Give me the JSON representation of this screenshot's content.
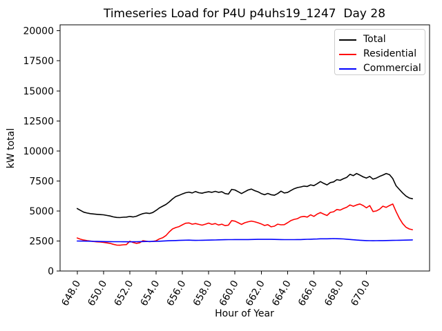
{
  "figure": {
    "title": "Timeseries Load for P4U p4uhs19_1247  Day 28",
    "xlabel": "Hour of Year",
    "ylabel": "kW total"
  },
  "chart_data": {
    "type": "line",
    "title": "Timeseries Load for P4U p4uhs19_1247  Day 28",
    "xlabel": "Hour of Year",
    "ylabel": "kW total",
    "xlim": [
      646.7,
      674.8
    ],
    "ylim": [
      0,
      20500
    ],
    "grid": false,
    "legend_position": "upper right",
    "xtick_rotation": 60,
    "xticks": [
      648,
      650,
      652,
      654,
      656,
      658,
      660,
      662,
      664,
      666,
      668,
      670
    ],
    "xtick_labels": [
      "648.0",
      "650.0",
      "652.0",
      "654.0",
      "656.0",
      "658.0",
      "660.0",
      "662.0",
      "664.0",
      "666.0",
      "668.0",
      "670.0"
    ],
    "yticks": [
      0,
      2500,
      5000,
      7500,
      10000,
      12500,
      15000,
      17500,
      20000
    ],
    "ytick_labels": [
      "0",
      "2500",
      "5000",
      "7500",
      "10000",
      "12500",
      "15000",
      "17500",
      "20000"
    ],
    "x": [
      648.0,
      648.25,
      648.5,
      648.75,
      649.0,
      649.25,
      649.5,
      649.75,
      650.0,
      650.25,
      650.5,
      650.75,
      651.0,
      651.25,
      651.5,
      651.75,
      652.0,
      652.25,
      652.5,
      652.75,
      653.0,
      653.25,
      653.5,
      653.75,
      654.0,
      654.25,
      654.5,
      654.75,
      655.0,
      655.25,
      655.5,
      655.75,
      656.0,
      656.25,
      656.5,
      656.75,
      657.0,
      657.25,
      657.5,
      657.75,
      658.0,
      658.25,
      658.5,
      658.75,
      659.0,
      659.25,
      659.5,
      659.75,
      660.0,
      660.25,
      660.5,
      660.75,
      661.0,
      661.25,
      661.5,
      661.75,
      662.0,
      662.25,
      662.5,
      662.75,
      663.0,
      663.25,
      663.5,
      663.75,
      664.0,
      664.25,
      664.5,
      664.75,
      665.0,
      665.25,
      665.5,
      665.75,
      666.0,
      666.25,
      666.5,
      666.75,
      667.0,
      667.25,
      667.5,
      667.75,
      668.0,
      668.25,
      668.5,
      668.75,
      669.0,
      669.25,
      669.5,
      669.75,
      670.0,
      670.25,
      670.5,
      670.75,
      671.0,
      671.25,
      671.5,
      671.75,
      672.0,
      672.25,
      672.5,
      672.75,
      673.0,
      673.25,
      673.5
    ],
    "series": [
      {
        "name": "Total",
        "color": "#000000",
        "values": [
          5200,
          5050,
          4900,
          4830,
          4780,
          4750,
          4720,
          4700,
          4680,
          4630,
          4580,
          4510,
          4460,
          4450,
          4480,
          4490,
          4540,
          4500,
          4560,
          4680,
          4780,
          4830,
          4790,
          4870,
          5050,
          5250,
          5400,
          5540,
          5750,
          6000,
          6200,
          6300,
          6420,
          6520,
          6570,
          6500,
          6620,
          6520,
          6480,
          6550,
          6600,
          6550,
          6630,
          6550,
          6600,
          6450,
          6400,
          6800,
          6750,
          6600,
          6450,
          6600,
          6750,
          6820,
          6690,
          6600,
          6450,
          6350,
          6460,
          6350,
          6310,
          6450,
          6650,
          6500,
          6540,
          6700,
          6850,
          6950,
          7000,
          7070,
          7040,
          7170,
          7110,
          7270,
          7450,
          7300,
          7170,
          7360,
          7420,
          7610,
          7550,
          7690,
          7800,
          8050,
          7940,
          8120,
          7990,
          7840,
          7740,
          7880,
          7650,
          7740,
          7880,
          7990,
          8120,
          8030,
          7700,
          7100,
          6800,
          6500,
          6250,
          6080,
          6020
        ]
      },
      {
        "name": "Residential",
        "color": "#ff0000",
        "values": [
          2750,
          2650,
          2580,
          2530,
          2490,
          2460,
          2430,
          2410,
          2390,
          2340,
          2300,
          2220,
          2160,
          2150,
          2180,
          2200,
          2480,
          2380,
          2300,
          2350,
          2520,
          2480,
          2440,
          2470,
          2520,
          2670,
          2770,
          2950,
          3250,
          3500,
          3620,
          3700,
          3850,
          3980,
          4000,
          3900,
          3950,
          3880,
          3820,
          3900,
          3990,
          3880,
          3950,
          3830,
          3900,
          3780,
          3820,
          4200,
          4150,
          4020,
          3880,
          4020,
          4100,
          4160,
          4100,
          4020,
          3920,
          3790,
          3860,
          3680,
          3730,
          3900,
          3850,
          3860,
          4020,
          4200,
          4300,
          4360,
          4500,
          4550,
          4490,
          4680,
          4550,
          4740,
          4870,
          4740,
          4620,
          4880,
          4930,
          5120,
          5070,
          5200,
          5310,
          5500,
          5390,
          5500,
          5580,
          5450,
          5260,
          5450,
          4950,
          5000,
          5150,
          5400,
          5300,
          5450,
          5580,
          4950,
          4400,
          3950,
          3650,
          3500,
          3440
        ]
      },
      {
        "name": "Commercial",
        "color": "#0000ff",
        "values": [
          2500,
          2495,
          2490,
          2485,
          2480,
          2472,
          2465,
          2458,
          2450,
          2448,
          2445,
          2443,
          2440,
          2438,
          2435,
          2433,
          2430,
          2435,
          2440,
          2445,
          2450,
          2455,
          2460,
          2465,
          2470,
          2483,
          2495,
          2508,
          2520,
          2530,
          2540,
          2550,
          2560,
          2565,
          2570,
          2560,
          2550,
          2555,
          2560,
          2565,
          2570,
          2578,
          2585,
          2593,
          2600,
          2605,
          2610,
          2615,
          2620,
          2620,
          2620,
          2620,
          2620,
          2625,
          2630,
          2635,
          2640,
          2638,
          2635,
          2633,
          2630,
          2625,
          2620,
          2615,
          2610,
          2613,
          2615,
          2618,
          2620,
          2630,
          2640,
          2650,
          2660,
          2665,
          2680,
          2680,
          2680,
          2690,
          2700,
          2690,
          2680,
          2673,
          2650,
          2625,
          2600,
          2580,
          2560,
          2545,
          2530,
          2525,
          2520,
          2525,
          2530,
          2535,
          2540,
          2545,
          2550,
          2555,
          2560,
          2565,
          2570,
          2580,
          2590
        ]
      }
    ]
  }
}
